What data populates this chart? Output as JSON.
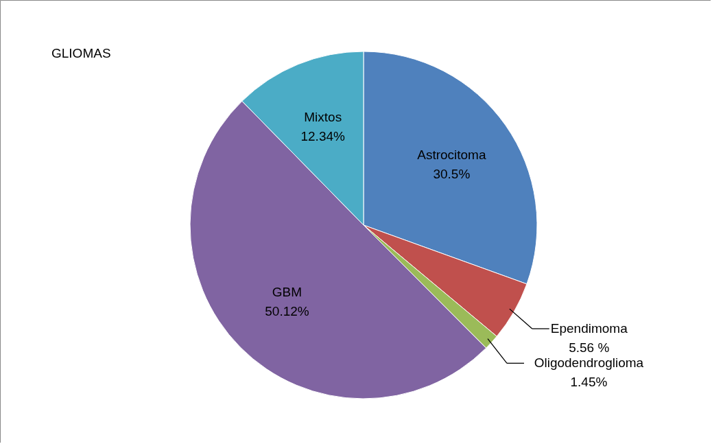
{
  "chart_data": {
    "type": "pie",
    "title": "GLIOMAS",
    "categories": [
      "Astrocitoma",
      "Ependimoma",
      "Oligodendroglioma",
      "GBM",
      "Mixtos"
    ],
    "values": [
      30.5,
      5.56,
      1.45,
      50.12,
      12.34
    ],
    "value_labels": [
      "30.5%",
      "5.56 %",
      "1.45%",
      "50.12%",
      "12.34%"
    ],
    "colors": [
      "#4f81bd",
      "#c0504d",
      "#9bbb59",
      "#8064a2",
      "#4bacc6"
    ]
  }
}
